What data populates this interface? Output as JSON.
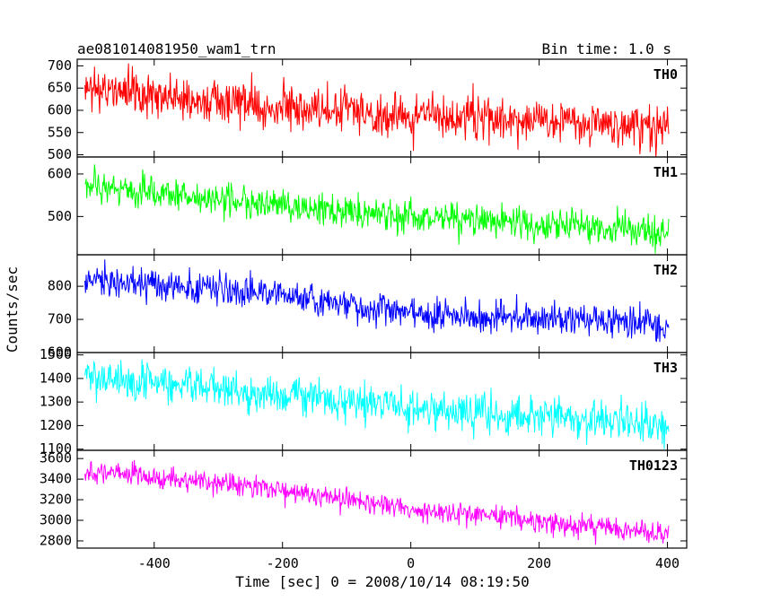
{
  "header": {
    "left_title": "ae081014081950_wam1_trn",
    "right_title": "Bin time: 1.0 s"
  },
  "xlabel": "Time [sec] 0 = 2008/10/14 08:19:50",
  "ylabel": "Counts/sec",
  "chart_data": {
    "type": "line",
    "title": "ae081014081950_wam1_trn",
    "subtitle": "Bin time: 1.0 s",
    "xlabel": "Time [sec] 0 = 2008/10/14 08:19:50",
    "ylabel": "Counts/sec",
    "xlim": [
      -520,
      430
    ],
    "x_ticks": [
      -400,
      -200,
      0,
      200,
      400
    ],
    "x_range_of_data": [
      -508,
      402
    ],
    "bin_time_s": 1.0,
    "grid": false,
    "legend": "none",
    "panels": [
      {
        "name": "TH0",
        "color": "#ff0000",
        "ylim": [
          495,
          715
        ],
        "y_ticks": [
          500,
          550,
          600,
          650,
          700
        ],
        "trend_x": [
          -508,
          -400,
          -200,
          0,
          200,
          400
        ],
        "trend_mean": [
          648,
          632,
          608,
          590,
          572,
          560
        ],
        "noise_sd": 25
      },
      {
        "name": "TH1",
        "color": "#00ff00",
        "ylim": [
          410,
          640
        ],
        "y_ticks": [
          500,
          600
        ],
        "trend_x": [
          -508,
          -400,
          -200,
          0,
          200,
          400
        ],
        "trend_mean": [
          572,
          556,
          525,
          500,
          480,
          465
        ],
        "noise_sd": 19
      },
      {
        "name": "TH2",
        "color": "#0000ff",
        "ylim": [
          600,
          895
        ],
        "y_ticks": [
          600,
          700,
          800
        ],
        "trend_x": [
          -508,
          -400,
          -200,
          0,
          200,
          400
        ],
        "trend_mean": [
          820,
          805,
          775,
          720,
          700,
          690
        ],
        "noise_sd": 26
      },
      {
        "name": "TH3",
        "color": "#00ffff",
        "ylim": [
          1095,
          1510
        ],
        "y_ticks": [
          1100,
          1200,
          1300,
          1400,
          1500
        ],
        "trend_x": [
          -508,
          -400,
          -200,
          0,
          200,
          400
        ],
        "trend_mean": [
          1405,
          1385,
          1330,
          1275,
          1230,
          1205
        ],
        "noise_sd": 42
      },
      {
        "name": "TH0123",
        "color": "#ff00ff",
        "ylim": [
          2730,
          3680
        ],
        "y_ticks": [
          2800,
          3000,
          3200,
          3400,
          3600
        ],
        "trend_x": [
          -508,
          -400,
          -200,
          0,
          200,
          400
        ],
        "trend_mean": [
          3470,
          3420,
          3290,
          3110,
          2990,
          2870
        ],
        "noise_sd": 55
      }
    ]
  }
}
